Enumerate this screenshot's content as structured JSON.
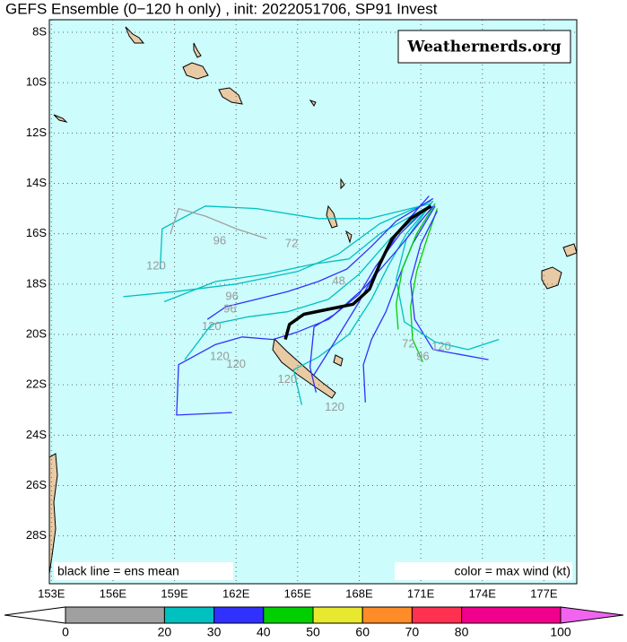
{
  "chart_data": {
    "type": "track-map",
    "title": "GEFS Ensemble (0−120 h only) , init: 2022051706, SP91 Invest",
    "watermark": "Weathernerds.org",
    "note_left": "black line = ens mean",
    "note_right": "color = max wind (kt)",
    "xlim": [
      152.9,
      178.6
    ],
    "ylim": [
      -29.9,
      -7.5
    ],
    "xticks": [
      {
        "value": 153,
        "label": "153E"
      },
      {
        "value": 156,
        "label": "156E"
      },
      {
        "value": 159,
        "label": "159E"
      },
      {
        "value": 162,
        "label": "162E"
      },
      {
        "value": 165,
        "label": "165E"
      },
      {
        "value": 168,
        "label": "168E"
      },
      {
        "value": 171,
        "label": "171E"
      },
      {
        "value": 174,
        "label": "174E"
      },
      {
        "value": 177,
        "label": "177E"
      }
    ],
    "yticks": [
      {
        "value": -8,
        "label": "8S"
      },
      {
        "value": -10,
        "label": "10S"
      },
      {
        "value": -12,
        "label": "12S"
      },
      {
        "value": -14,
        "label": "14S"
      },
      {
        "value": -16,
        "label": "16S"
      },
      {
        "value": -18,
        "label": "18S"
      },
      {
        "value": -20,
        "label": "20S"
      },
      {
        "value": -22,
        "label": "22S"
      },
      {
        "value": -24,
        "label": "24S"
      },
      {
        "value": -26,
        "label": "26S"
      },
      {
        "value": -28,
        "label": "28S"
      }
    ],
    "grid": true,
    "series": [
      {
        "color": "#00c0c0",
        "x": [
          171.5,
          169,
          167,
          165,
          162,
          159,
          156.5
        ],
        "y": [
          -14.7,
          -15.6,
          -16.8,
          -17.5,
          -18,
          -18.3,
          -18.5
        ]
      },
      {
        "color": "#00c0c0",
        "x": [
          171.5,
          168.5,
          166,
          163,
          160.5,
          158.4,
          158.3
        ],
        "y": [
          -14.8,
          -15.4,
          -15.4,
          -15,
          -14.9,
          -15.8,
          -17.4
        ]
      },
      {
        "color": "#a0a0a0",
        "x": [
          163.5,
          162,
          160.5,
          159.2,
          158.8
        ],
        "y": [
          -16.2,
          -15.8,
          -15.3,
          -15,
          -16
        ]
      },
      {
        "color": "#00c0c0",
        "x": [
          171.4,
          169,
          167.5,
          165.8,
          163.5,
          161,
          158.5
        ],
        "y": [
          -14.9,
          -16,
          -17,
          -17.2,
          -17.6,
          -17.9,
          -18.7
        ]
      },
      {
        "color": "#3030ff",
        "x": [
          171.6,
          169.8,
          168.6,
          167.4,
          166,
          164.5,
          163,
          161.5,
          160.6
        ],
        "y": [
          -14.6,
          -15.5,
          -16.5,
          -17.4,
          -17.9,
          -18.3,
          -18.6,
          -18.9,
          -19.4
        ]
      },
      {
        "color": "#00c0c0",
        "x": [
          171.3,
          169.5,
          168,
          166.5,
          164.5,
          162.6,
          160.8,
          159.5
        ],
        "y": [
          -15,
          -16.2,
          -17.6,
          -18.6,
          -19.1,
          -19.3,
          -19.6,
          -21
        ]
      },
      {
        "color": "#3030ff",
        "x": [
          171.5,
          170,
          168.8,
          168,
          166.5,
          165,
          163.8,
          162.3,
          161,
          159.2,
          159.1,
          161.8
        ],
        "y": [
          -14.8,
          -16,
          -17.3,
          -18.4,
          -19.4,
          -19.9,
          -20.2,
          -20.1,
          -20.4,
          -21.2,
          -23.2,
          -23.1
        ]
      },
      {
        "color": "#00c0c0",
        "x": [
          171.6,
          170.3,
          169.4,
          168.6,
          167.5,
          166,
          164.8,
          165.2
        ],
        "y": [
          -14.7,
          -16,
          -17.3,
          -18.6,
          -20,
          -20.9,
          -21.4,
          -22.8
        ]
      },
      {
        "color": "#3030ff",
        "x": [
          171.7,
          170.6,
          169.9,
          169.3,
          168.6,
          168.2,
          168.3
        ],
        "y": [
          -14.9,
          -16.4,
          -17.8,
          -19.1,
          -20.2,
          -21.2,
          -22.7
        ]
      },
      {
        "color": "#00d000",
        "x": [
          171.8,
          171.3,
          170.8,
          170.5,
          170.6,
          171.1
        ],
        "y": [
          -15,
          -16.2,
          -17.5,
          -18.9,
          -20.2,
          -21.1
        ]
      },
      {
        "color": "#3030ff",
        "x": [
          171.8,
          171,
          170.5,
          170.7,
          171.6,
          174.3
        ],
        "y": [
          -15.1,
          -16.4,
          -17.9,
          -19.4,
          -20.6,
          -21
        ]
      },
      {
        "color": "#00c0c0",
        "x": [
          171.5,
          170.3,
          169.8,
          170.2,
          171.7,
          173.3,
          174.8
        ],
        "y": [
          -14.8,
          -16.2,
          -17.8,
          -19.5,
          -20.3,
          -20.6,
          -20.2
        ]
      },
      {
        "color": "#3030ff",
        "x": [
          171.4,
          170,
          169,
          168,
          166.8,
          165.8
        ],
        "y": [
          -14.5,
          -15.8,
          -17.2,
          -18.7,
          -20.3,
          -21.6
        ]
      },
      {
        "color": "#00d000",
        "x": [
          171.7,
          170.8,
          170.1,
          169.8,
          169.9
        ],
        "y": [
          -14.8,
          -16,
          -17.4,
          -18.8,
          -19.8
        ]
      },
      {
        "color": "#3030ff",
        "x": [
          171.6,
          169.9,
          168.3,
          166.8,
          165.8,
          165.6,
          165.9
        ],
        "y": [
          -14.9,
          -16.6,
          -18.1,
          -19.2,
          -19.7,
          -21.3,
          -22.3
        ]
      },
      {
        "color": "#000000",
        "width": 3.5,
        "x": [
          171.5,
          170.5,
          169.6,
          169,
          168.5,
          167.7,
          166.5,
          165.3,
          164.6,
          164.4
        ],
        "y": [
          -14.9,
          -15.4,
          -16.2,
          -17.2,
          -18.2,
          -18.8,
          -19,
          -19.2,
          -19.6,
          -20.2
        ]
      }
    ],
    "hour_labels": [
      {
        "text": "96",
        "x": 161.2,
        "y": -16.3
      },
      {
        "text": "120",
        "x": 158.1,
        "y": -17.3
      },
      {
        "text": "72",
        "x": 164.7,
        "y": -16.4
      },
      {
        "text": "48",
        "x": 167,
        "y": -17.9
      },
      {
        "text": "96",
        "x": 161.8,
        "y": -18.5
      },
      {
        "text": "96",
        "x": 161.7,
        "y": -19
      },
      {
        "text": "120",
        "x": 160.8,
        "y": -19.7
      },
      {
        "text": "120",
        "x": 161.2,
        "y": -20.9
      },
      {
        "text": "120",
        "x": 162,
        "y": -21.2
      },
      {
        "text": "120",
        "x": 164.5,
        "y": -21.8
      },
      {
        "text": "120",
        "x": 166.8,
        "y": -22.9
      },
      {
        "text": "72",
        "x": 170.4,
        "y": -20.4
      },
      {
        "text": "96",
        "x": 171.1,
        "y": -20.9
      },
      {
        "text": "120",
        "x": 172,
        "y": -20.5
      }
    ],
    "colorbar": {
      "bins": [
        0,
        20,
        30,
        40,
        50,
        60,
        70,
        80,
        100
      ],
      "colors": [
        "#a0a0a0",
        "#00c0c0",
        "#3030ff",
        "#00d000",
        "#e8e830",
        "#ff8c28",
        "#ff3050",
        "#f0008c"
      ],
      "under_color": "#ffffff",
      "over_color": "#f064f0"
    }
  }
}
